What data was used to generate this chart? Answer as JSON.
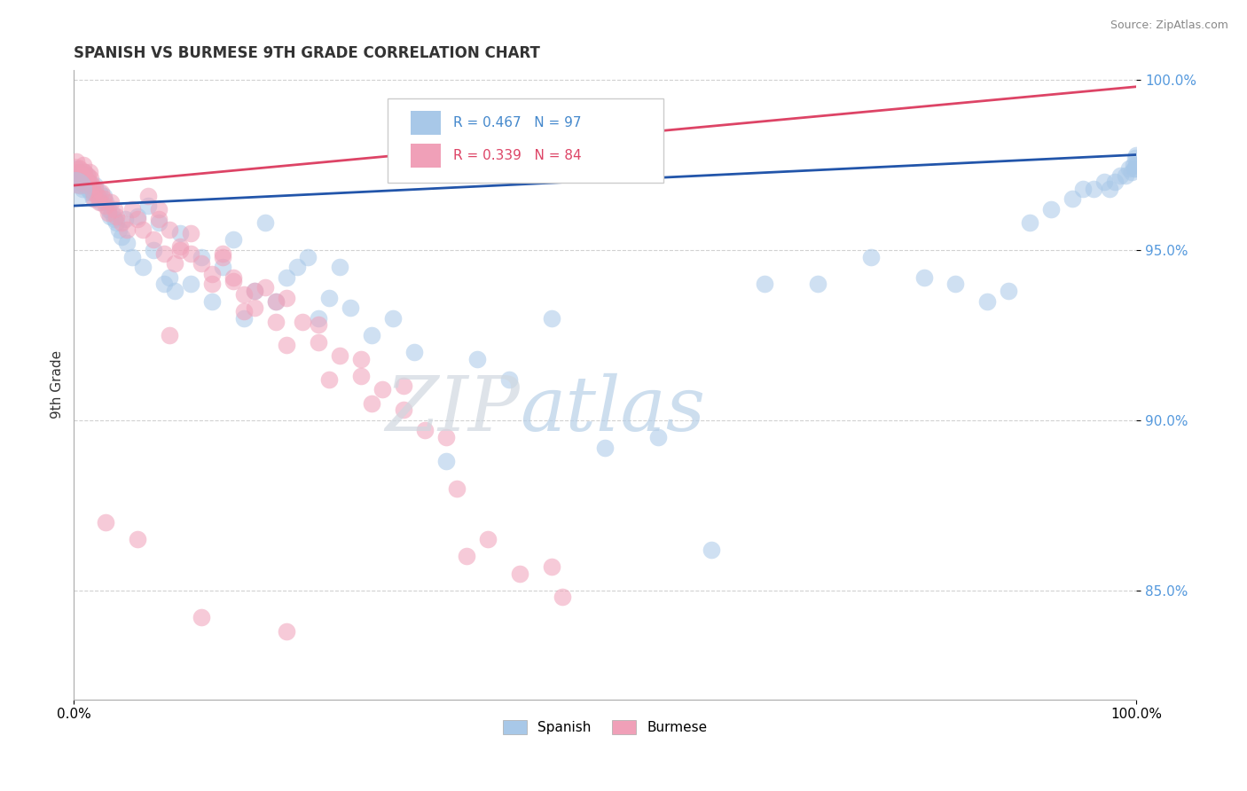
{
  "title": "SPANISH VS BURMESE 9TH GRADE CORRELATION CHART",
  "source_text": "Source: ZipAtlas.com",
  "ylabel": "9th Grade",
  "xlim": [
    0.0,
    1.0
  ],
  "ylim": [
    0.818,
    1.003
  ],
  "ytick_positions": [
    0.85,
    0.9,
    0.95,
    1.0
  ],
  "legend_spanish": "Spanish",
  "legend_burmese": "Burmese",
  "r_spanish": "R = 0.467",
  "n_spanish": "N = 97",
  "r_burmese": "R = 0.339",
  "n_burmese": "N = 84",
  "spanish_color": "#a8c8e8",
  "burmese_color": "#f0a0b8",
  "spanish_line_color": "#2255aa",
  "burmese_line_color": "#dd4466",
  "background_color": "#ffffff",
  "watermark_zip_color": "#c8d4e0",
  "watermark_atlas_color": "#b8cce0",
  "spanish_x": [
    0.002,
    0.003,
    0.004,
    0.005,
    0.006,
    0.006,
    0.007,
    0.007,
    0.008,
    0.009,
    0.01,
    0.01,
    0.011,
    0.012,
    0.013,
    0.014,
    0.015,
    0.016,
    0.017,
    0.018,
    0.019,
    0.02,
    0.022,
    0.024,
    0.026,
    0.028,
    0.03,
    0.032,
    0.034,
    0.036,
    0.038,
    0.04,
    0.042,
    0.045,
    0.048,
    0.05,
    0.055,
    0.06,
    0.065,
    0.07,
    0.075,
    0.08,
    0.085,
    0.09,
    0.095,
    0.1,
    0.11,
    0.12,
    0.13,
    0.14,
    0.15,
    0.16,
    0.17,
    0.18,
    0.19,
    0.2,
    0.21,
    0.22,
    0.23,
    0.24,
    0.25,
    0.26,
    0.28,
    0.3,
    0.32,
    0.35,
    0.38,
    0.41,
    0.45,
    0.5,
    0.55,
    0.6,
    0.65,
    0.7,
    0.75,
    0.8,
    0.83,
    0.86,
    0.88,
    0.9,
    0.92,
    0.94,
    0.95,
    0.96,
    0.97,
    0.975,
    0.98,
    0.985,
    0.99,
    0.993,
    0.996,
    0.997,
    0.998,
    0.999,
    0.999,
    1.0,
    1.0
  ],
  "spanish_y": [
    0.974,
    0.97,
    0.972,
    0.971,
    0.969,
    0.973,
    0.97,
    0.972,
    0.968,
    0.971,
    0.973,
    0.969,
    0.97,
    0.972,
    0.968,
    0.97,
    0.969,
    0.967,
    0.968,
    0.965,
    0.967,
    0.969,
    0.966,
    0.967,
    0.964,
    0.966,
    0.964,
    0.962,
    0.96,
    0.961,
    0.959,
    0.958,
    0.956,
    0.954,
    0.959,
    0.952,
    0.948,
    0.96,
    0.945,
    0.963,
    0.95,
    0.958,
    0.94,
    0.942,
    0.938,
    0.955,
    0.94,
    0.948,
    0.935,
    0.945,
    0.953,
    0.93,
    0.938,
    0.958,
    0.935,
    0.942,
    0.945,
    0.948,
    0.93,
    0.936,
    0.945,
    0.933,
    0.925,
    0.93,
    0.92,
    0.888,
    0.918,
    0.912,
    0.93,
    0.892,
    0.895,
    0.862,
    0.94,
    0.94,
    0.948,
    0.942,
    0.94,
    0.935,
    0.938,
    0.958,
    0.962,
    0.965,
    0.968,
    0.968,
    0.97,
    0.968,
    0.97,
    0.972,
    0.972,
    0.974,
    0.973,
    0.975,
    0.974,
    0.977,
    0.974,
    0.975,
    0.978
  ],
  "burmese_x": [
    0.002,
    0.003,
    0.004,
    0.005,
    0.006,
    0.007,
    0.008,
    0.009,
    0.01,
    0.011,
    0.012,
    0.013,
    0.014,
    0.015,
    0.016,
    0.017,
    0.018,
    0.019,
    0.02,
    0.022,
    0.024,
    0.026,
    0.028,
    0.03,
    0.032,
    0.035,
    0.038,
    0.04,
    0.045,
    0.05,
    0.055,
    0.06,
    0.065,
    0.07,
    0.075,
    0.08,
    0.085,
    0.09,
    0.095,
    0.1,
    0.11,
    0.12,
    0.13,
    0.14,
    0.15,
    0.16,
    0.17,
    0.18,
    0.19,
    0.2,
    0.215,
    0.23,
    0.25,
    0.27,
    0.29,
    0.31,
    0.33,
    0.36,
    0.39,
    0.42,
    0.46,
    0.11,
    0.15,
    0.19,
    0.23,
    0.27,
    0.31,
    0.35,
    0.08,
    0.1,
    0.13,
    0.16,
    0.2,
    0.24,
    0.28,
    0.14,
    0.17,
    0.03,
    0.06,
    0.09,
    0.12,
    0.2,
    0.37,
    0.45
  ],
  "burmese_y": [
    0.976,
    0.973,
    0.971,
    0.974,
    0.969,
    0.972,
    0.97,
    0.975,
    0.973,
    0.971,
    0.969,
    0.972,
    0.97,
    0.973,
    0.971,
    0.969,
    0.967,
    0.965,
    0.968,
    0.966,
    0.964,
    0.967,
    0.965,
    0.963,
    0.961,
    0.964,
    0.962,
    0.96,
    0.958,
    0.956,
    0.962,
    0.959,
    0.956,
    0.966,
    0.953,
    0.959,
    0.949,
    0.956,
    0.946,
    0.951,
    0.949,
    0.946,
    0.943,
    0.949,
    0.941,
    0.937,
    0.933,
    0.939,
    0.929,
    0.936,
    0.929,
    0.923,
    0.919,
    0.913,
    0.909,
    0.903,
    0.897,
    0.88,
    0.865,
    0.855,
    0.848,
    0.955,
    0.942,
    0.935,
    0.928,
    0.918,
    0.91,
    0.895,
    0.962,
    0.95,
    0.94,
    0.932,
    0.922,
    0.912,
    0.905,
    0.948,
    0.938,
    0.87,
    0.865,
    0.925,
    0.842,
    0.838,
    0.86,
    0.857
  ]
}
